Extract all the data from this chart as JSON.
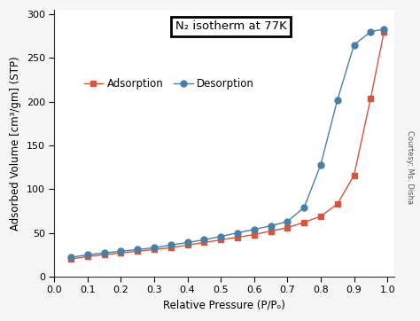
{
  "adsorption_x": [
    0.05,
    0.1,
    0.15,
    0.2,
    0.25,
    0.3,
    0.35,
    0.4,
    0.45,
    0.5,
    0.55,
    0.6,
    0.65,
    0.7,
    0.75,
    0.8,
    0.85,
    0.9,
    0.95,
    0.99
  ],
  "adsorption_y": [
    20,
    23,
    25,
    27,
    29,
    31,
    33,
    36,
    39,
    42,
    45,
    48,
    52,
    56,
    62,
    69,
    83,
    116,
    204,
    280
  ],
  "desorption_x": [
    0.05,
    0.1,
    0.15,
    0.2,
    0.25,
    0.3,
    0.35,
    0.4,
    0.45,
    0.5,
    0.55,
    0.6,
    0.65,
    0.7,
    0.75,
    0.8,
    0.85,
    0.9,
    0.95,
    0.99
  ],
  "desorption_y": [
    22,
    25,
    27,
    29,
    31,
    33,
    36,
    39,
    42,
    46,
    50,
    54,
    58,
    63,
    79,
    128,
    202,
    265,
    280,
    283
  ],
  "adsorption_color": "#d9543a",
  "desorption_color": "#4a7fa5",
  "xlabel": "Relative Pressure (P/Pₒ)",
  "ylabel": "Adsorbed Volume [cm³/gm] (STP)",
  "title": "N₂ isotherm at 77K",
  "xlim": [
    0.02,
    1.02
  ],
  "ylim": [
    0,
    305
  ],
  "xticks": [
    0.0,
    0.1,
    0.2,
    0.3,
    0.4,
    0.5,
    0.6,
    0.7,
    0.8,
    0.9,
    1.0
  ],
  "yticks": [
    0,
    50,
    100,
    150,
    200,
    250,
    300
  ],
  "plot_bg_color": "#ffffff",
  "fig_bg_color": "#f5f5f5",
  "courtesy_text": "Courtesy: Ms. Disha",
  "legend_adsorption": "Adsorption",
  "legend_desorption": "Desorption"
}
